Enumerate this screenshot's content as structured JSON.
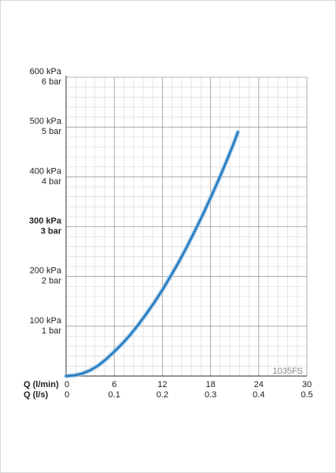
{
  "chart_data": {
    "type": "line",
    "series": [
      {
        "x": [
          0,
          1,
          2,
          3,
          4,
          5,
          6,
          7,
          8,
          9,
          10,
          11,
          12,
          13,
          14,
          15,
          16,
          17,
          18,
          19,
          20,
          21,
          21.4
        ],
        "y": [
          0,
          1.3,
          5,
          11.5,
          21,
          34,
          49,
          65,
          83,
          103,
          125,
          148,
          173,
          200,
          228,
          258,
          290,
          323,
          358,
          394,
          432,
          472,
          490
        ]
      }
    ],
    "y_ticks": [
      {
        "kpa": "100 kPa",
        "bar": "1 bar",
        "value": 100,
        "bold": false
      },
      {
        "kpa": "200 kPa",
        "bar": "2 bar",
        "value": 200,
        "bold": false
      },
      {
        "kpa": "300 kPa",
        "bar": "3 bar",
        "value": 300,
        "bold": true
      },
      {
        "kpa": "400 kPa",
        "bar": "4 bar",
        "value": 400,
        "bold": false
      },
      {
        "kpa": "500 kPa",
        "bar": "5 bar",
        "value": 500,
        "bold": false
      },
      {
        "kpa": "600 kPa",
        "bar": "6 bar",
        "value": 600,
        "bold": false
      }
    ],
    "x_ticks_lmin": [
      "0",
      "6",
      "12",
      "18",
      "24",
      "30"
    ],
    "x_ticks_ls": [
      "0",
      "0.1",
      "0.2",
      "0.3",
      "0.4",
      "0.5"
    ],
    "x_tick_values": [
      0,
      6,
      12,
      18,
      24,
      30
    ],
    "x_label_lmin": "Q (l/min)",
    "x_label_ls": "Q (l/s)",
    "xlim": [
      0,
      30
    ],
    "ylim": [
      0,
      600
    ],
    "grid": true,
    "model_code": "1035FS",
    "colors": {
      "curve": "#2b7fc2",
      "curve_glow": "#a9cde9",
      "grid_major": "#9a9a9a",
      "grid_minor": "#dcdcdc",
      "axis": "#555555"
    }
  }
}
